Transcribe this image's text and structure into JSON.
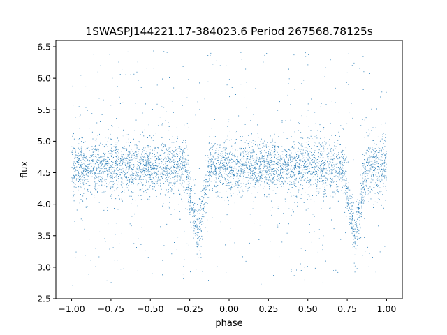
{
  "chart_data": {
    "type": "scatter",
    "title": "1SWASPJ144221.17-384023.6 Period 267568.78125s",
    "xlabel": "phase",
    "ylabel": "flux",
    "xlim": [
      -1.1,
      1.1
    ],
    "ylim": [
      2.5,
      6.6
    ],
    "x_ticks": [
      -1.0,
      -0.75,
      -0.5,
      -0.25,
      0.0,
      0.25,
      0.5,
      0.75,
      1.0
    ],
    "x_tick_labels": [
      "−1.00",
      "−0.75",
      "−0.50",
      "−0.25",
      "0.00",
      "0.25",
      "0.50",
      "0.75",
      "1.00"
    ],
    "y_ticks": [
      2.5,
      3.0,
      3.5,
      4.0,
      4.5,
      5.0,
      5.5,
      6.0,
      6.5
    ],
    "y_tick_labels": [
      "2.5",
      "3.0",
      "3.5",
      "4.0",
      "4.5",
      "5.0",
      "5.5",
      "6.0",
      "6.5"
    ],
    "grid": false,
    "legend": "none",
    "marker_color": "#1f77b4",
    "x_range": [
      -1.0,
      1.0
    ],
    "baseline_flux": 4.6,
    "baseline_spread": 0.2,
    "eclipses": [
      {
        "phase": -0.2,
        "min_flux": 3.5,
        "half_width": 0.075
      },
      {
        "phase": 0.8,
        "min_flux": 3.5,
        "half_width": 0.075
      }
    ],
    "scatter_range": [
      2.7,
      6.45
    ]
  }
}
